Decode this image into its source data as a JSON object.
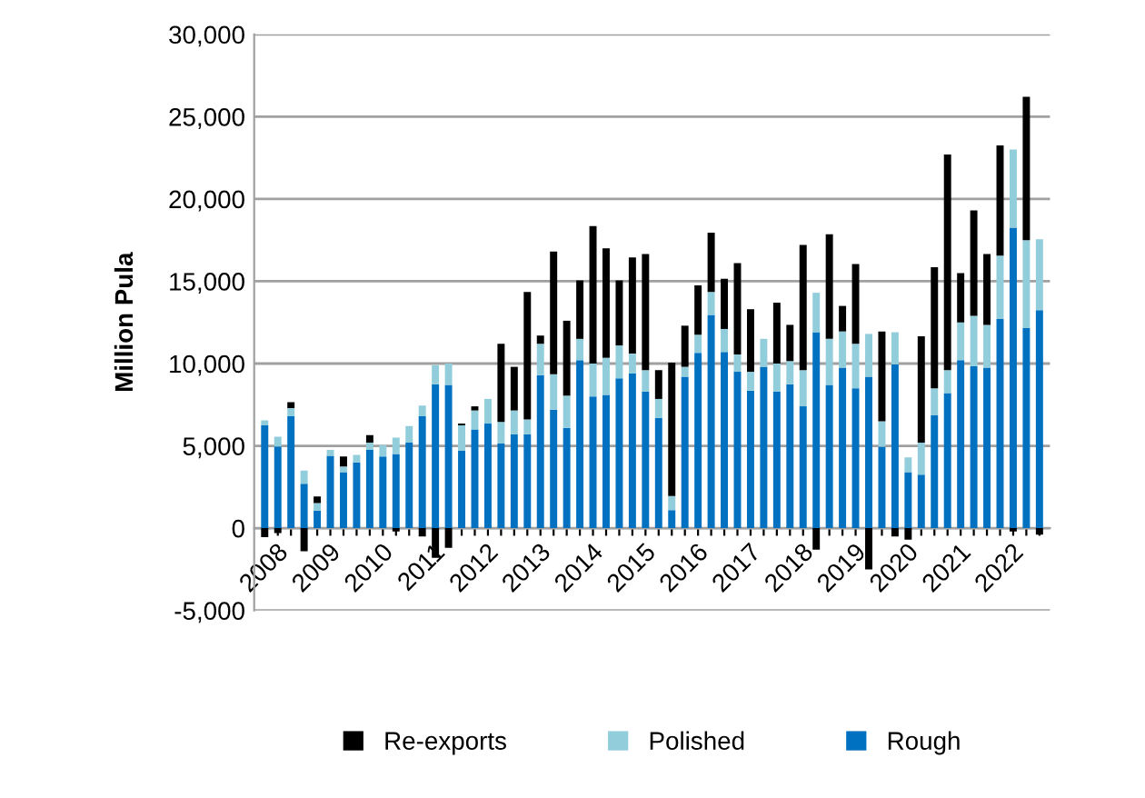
{
  "chart_data": {
    "type": "bar",
    "stacked": true,
    "ylabel": "Million Pula",
    "categories": [
      "2008",
      null,
      null,
      null,
      "2009",
      null,
      null,
      null,
      "2010",
      null,
      null,
      null,
      "2011",
      null,
      null,
      null,
      "2012",
      null,
      null,
      null,
      "2013",
      null,
      null,
      null,
      "2014",
      null,
      null,
      null,
      "2015",
      null,
      null,
      null,
      "2016",
      null,
      null,
      null,
      "2017",
      null,
      null,
      null,
      "2018",
      null,
      null,
      null,
      "2019",
      null,
      null,
      null,
      "2020",
      null,
      null,
      null,
      "2021",
      null,
      null,
      null,
      "2022",
      null,
      null,
      null
    ],
    "series": [
      {
        "name": "Rough",
        "color": "#0070c0",
        "values": [
          6250,
          4960,
          6800,
          2700,
          1070,
          4400,
          3400,
          4000,
          4750,
          4350,
          4500,
          5200,
          6800,
          8750,
          8700,
          4700,
          6000,
          6350,
          5150,
          5700,
          5700,
          9300,
          7200,
          6100,
          10200,
          8000,
          8100,
          9100,
          9400,
          8300,
          6700,
          1100,
          9200,
          10650,
          12950,
          10700,
          9500,
          8350,
          9800,
          8300,
          8750,
          7400,
          11900,
          8700,
          9750,
          8500,
          9200,
          4950,
          9950,
          3400,
          3250,
          6850,
          8200,
          10200,
          9850,
          9750,
          12700,
          18250,
          12150,
          13250
        ]
      },
      {
        "name": "Polished",
        "color": "#92cddc",
        "values": [
          300,
          600,
          500,
          800,
          450,
          350,
          350,
          450,
          450,
          700,
          1000,
          1000,
          650,
          1150,
          1300,
          1550,
          1150,
          1500,
          1300,
          1450,
          900,
          1900,
          2150,
          1950,
          1300,
          2000,
          2250,
          2000,
          1200,
          1300,
          1150,
          850,
          600,
          1100,
          1400,
          1400,
          1050,
          1150,
          1700,
          1700,
          1400,
          2200,
          2400,
          2800,
          2200,
          2700,
          2600,
          1550,
          1950,
          900,
          1950,
          1650,
          1400,
          2300,
          3050,
          2600,
          3850,
          4750,
          5350,
          4300
        ]
      },
      {
        "name": "Re-exports",
        "color": "#000000",
        "values": [
          -550,
          -300,
          350,
          -1400,
          400,
          0,
          600,
          0,
          450,
          0,
          -200,
          0,
          -500,
          -1800,
          -1200,
          100,
          250,
          0,
          4750,
          2650,
          7750,
          500,
          7450,
          4550,
          3550,
          8350,
          6650,
          3950,
          5850,
          7050,
          1750,
          8100,
          2500,
          3000,
          3600,
          3050,
          5550,
          3800,
          0,
          3700,
          2200,
          7600,
          -1300,
          6350,
          1550,
          4850,
          -2500,
          5450,
          -500,
          -700,
          6450,
          7350,
          13100,
          3000,
          6400,
          4300,
          6700,
          -200,
          8700,
          -400
        ]
      }
    ],
    "ylim": [
      -5000,
      30000
    ],
    "yticks": [
      {
        "value": -5000,
        "label": "-5,000"
      },
      {
        "value": 0,
        "label": "0"
      },
      {
        "value": 5000,
        "label": "5,000"
      },
      {
        "value": 10000,
        "label": "10,000"
      },
      {
        "value": 15000,
        "label": "15,000"
      },
      {
        "value": 20000,
        "label": "20,000"
      },
      {
        "value": 25000,
        "label": "25,000"
      },
      {
        "value": 30000,
        "label": "30,000"
      }
    ],
    "grid": "y",
    "legend": "bottom"
  }
}
